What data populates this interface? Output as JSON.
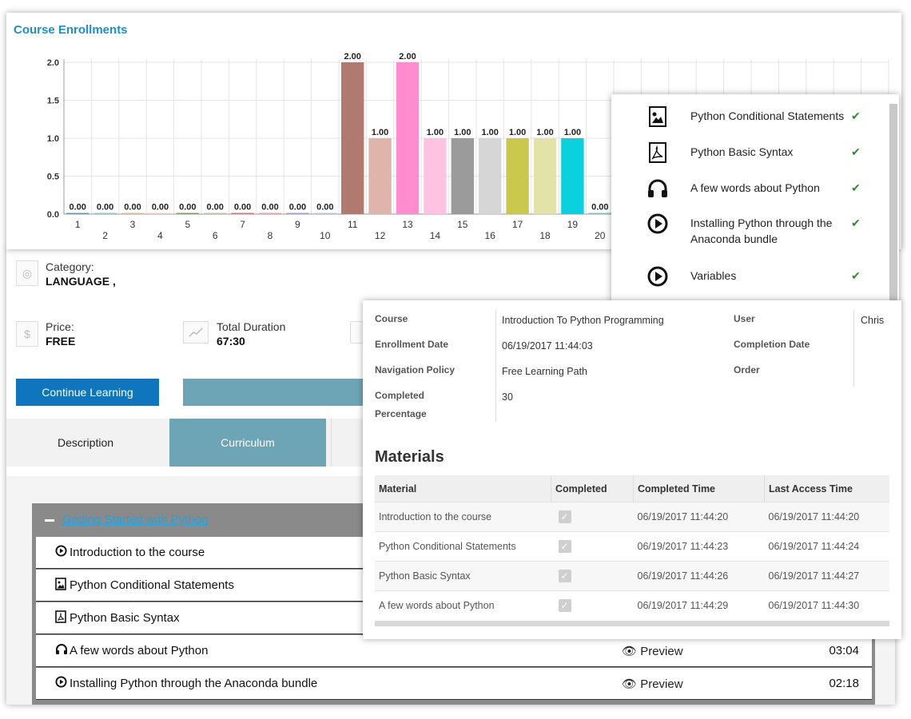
{
  "chart_data": {
    "type": "bar",
    "title": "Course Enrollments",
    "categories": [
      "1",
      "2",
      "3",
      "4",
      "5",
      "6",
      "7",
      "8",
      "9",
      "10",
      "11",
      "12",
      "13",
      "14",
      "15",
      "16",
      "17",
      "18",
      "19",
      "20"
    ],
    "values": [
      0,
      0,
      0,
      0,
      0,
      0,
      0,
      0,
      0,
      0,
      2,
      1,
      2,
      1,
      1,
      1,
      1,
      1,
      1,
      0
    ],
    "value_labels": [
      "0.00",
      "0.00",
      "0.00",
      "0.00",
      "0.00",
      "0.00",
      "0.00",
      "0.00",
      "0.00",
      "0.00",
      "2.00",
      "1.00",
      "2.00",
      "1.00",
      "1.00",
      "1.00",
      "1.00",
      "1.00",
      "1.00",
      "0.00"
    ],
    "colors": [
      "#5b9bd5",
      "#7ec8e3",
      "#f4b183",
      "#f8cbad",
      "#70ad47",
      "#a9d18e",
      "#ff6666",
      "#ff9999",
      "#9999ff",
      "#b4c7e7",
      "#b07a70",
      "#dfb4aa",
      "#ff8ccf",
      "#ffc2e1",
      "#9b9b9b",
      "#d6d6d6",
      "#c9c94e",
      "#e3e3a8",
      "#0bd0dd",
      "#5fcfcf"
    ],
    "y_ticks": [
      "0.0",
      "0.5",
      "1.0",
      "1.5",
      "2.0"
    ],
    "ylim": [
      0,
      2
    ],
    "grid": true,
    "xlabel": "",
    "ylabel": ""
  },
  "course": {
    "category_label": "Category:",
    "category_value": "LANGUAGE ,",
    "price_label": "Price:",
    "price_value": "FREE",
    "duration_label": "Total Duration",
    "duration_value": "67:30",
    "continue_button": "Continue Learning",
    "tabs": [
      "Description",
      "Curriculum"
    ]
  },
  "curriculum": {
    "section_title": "Getting Started with Python",
    "lessons": [
      {
        "title": "Introduction to the course",
        "icon": "play-circle-icon",
        "preview": "",
        "duration": ""
      },
      {
        "title": "Python Conditional Statements",
        "icon": "image-file-icon",
        "preview": "",
        "duration": ""
      },
      {
        "title": "Python Basic Syntax",
        "icon": "pdf-file-icon",
        "preview": "",
        "duration": ""
      },
      {
        "title": "A few words about Python",
        "icon": "headphones-icon",
        "preview": "Preview",
        "duration": "03:04"
      },
      {
        "title": "Installing Python through the Anaconda bundle",
        "icon": "play-circle-icon",
        "preview": "Preview",
        "duration": "02:18"
      }
    ]
  },
  "side_materials": [
    {
      "title": "Python Conditional Statements",
      "icon": "image-file-icon",
      "check": "✔"
    },
    {
      "title": "Python Basic Syntax",
      "icon": "pdf-file-icon",
      "check": "✔"
    },
    {
      "title": "A few words about Python",
      "icon": "headphones-icon",
      "check": "✔"
    },
    {
      "title": "Installing Python through the Anaconda bundle",
      "icon": "play-circle-icon",
      "check": "✔"
    },
    {
      "title": "Variables",
      "icon": "play-circle-icon",
      "check": "✔"
    }
  ],
  "enrollment": {
    "course_label": "Course",
    "course_value": "Introduction To Python Programming",
    "enroll_date_label": "Enrollment Date",
    "enroll_date_value": "06/19/2017 11:44:03",
    "nav_policy_label": "Navigation Policy",
    "nav_policy_value": "Free Learning Path",
    "completed_label_1": "Completed",
    "completed_label_2": "Percentage",
    "completed_value": "30",
    "user_label": "User",
    "user_value": "Chris",
    "completion_date_label": "Completion Date",
    "order_label": "Order"
  },
  "materials": {
    "title": "Materials",
    "headers": [
      "Material",
      "Completed",
      "Completed Time",
      "Last Access Time"
    ],
    "rows": [
      {
        "material": "Introduction to the course",
        "completed": "✓",
        "completed_time": "06/19/2017 11:44:20",
        "last_access": "06/19/2017 11:44:20"
      },
      {
        "material": "Python Conditional Statements",
        "completed": "✓",
        "completed_time": "06/19/2017 11:44:23",
        "last_access": "06/19/2017 11:44:24"
      },
      {
        "material": "Python Basic Syntax",
        "completed": "✓",
        "completed_time": "06/19/2017 11:44:26",
        "last_access": "06/19/2017 11:44:27"
      },
      {
        "material": "A few words about Python",
        "completed": "✓",
        "completed_time": "06/19/2017 11:44:29",
        "last_access": "06/19/2017 11:44:30"
      }
    ]
  }
}
